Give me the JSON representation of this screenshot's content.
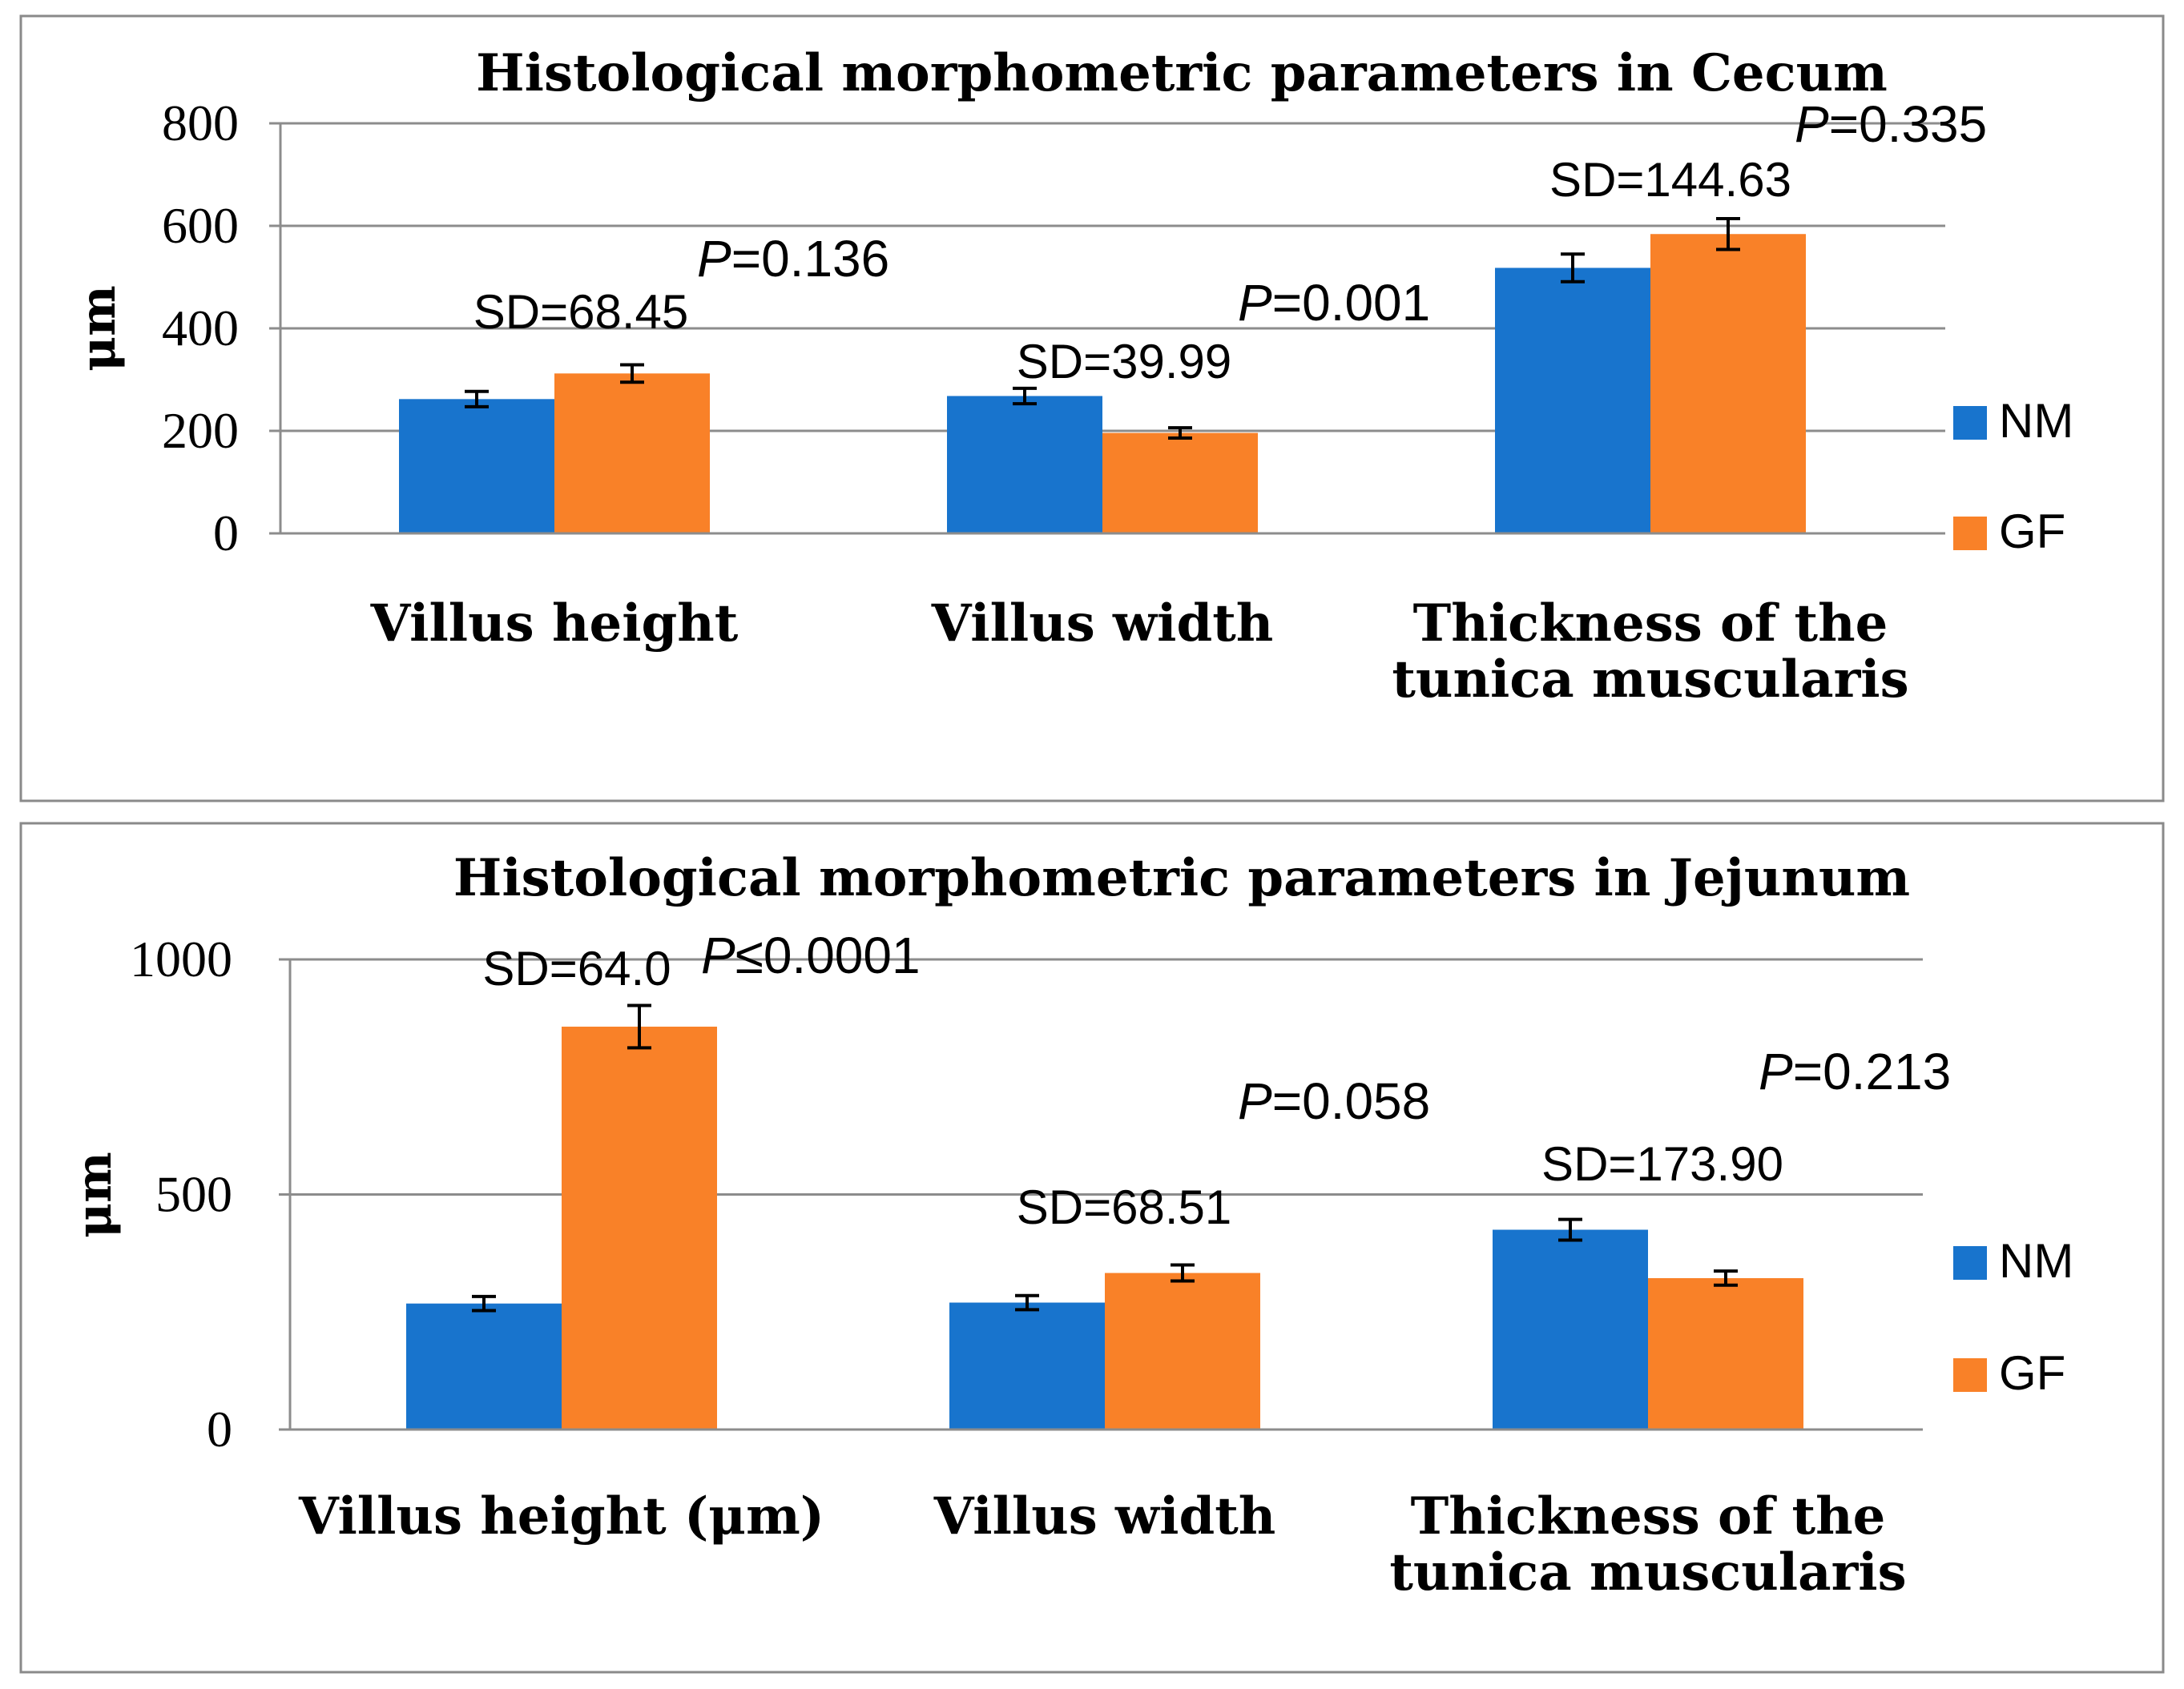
{
  "colors": {
    "nm": "#1874CD",
    "gf": "#F98128"
  },
  "chart_data": [
    {
      "type": "bar",
      "title": "Histological morphometric parameters in Cecum",
      "ylabel": "μm",
      "xlabel": "",
      "ylim": [
        0,
        800
      ],
      "yticks": [
        0,
        200,
        400,
        600,
        800
      ],
      "tick_labels": [
        "0",
        "200",
        "400",
        "600",
        "800"
      ],
      "categories": [
        [
          "Villus height"
        ],
        [
          "Villus width"
        ],
        [
          "Thickness of the",
          "tunica muscularis"
        ]
      ],
      "series": [
        {
          "name": "NM",
          "values": [
            262,
            268,
            518
          ],
          "errors": [
            15,
            15,
            27
          ]
        },
        {
          "name": "GF",
          "values": [
            312,
            196,
            584
          ],
          "errors": [
            17,
            10,
            30
          ]
        }
      ],
      "sd_labels": [
        "SD=68.45",
        "SD=39.99",
        "SD=144.63"
      ],
      "p_values": [
        "=0.136",
        "=0.001",
        "=0.335"
      ],
      "legend": [
        "NM",
        "GF"
      ]
    },
    {
      "type": "bar",
      "title": "Histological morphometric parameters in Jejunum",
      "ylabel": "μm",
      "xlabel": "",
      "ylim": [
        0,
        1000
      ],
      "yticks": [
        0,
        500,
        1000
      ],
      "tick_labels": [
        "0",
        "500",
        "1000"
      ],
      "categories": [
        [
          "Villus height (μm)"
        ],
        [
          "Villus width"
        ],
        [
          "Thickness of the",
          "tunica muscularis"
        ]
      ],
      "series": [
        {
          "name": "NM",
          "values": [
            268,
            270,
            425
          ],
          "errors": [
            15,
            15,
            22
          ]
        },
        {
          "name": "GF",
          "values": [
            857,
            333,
            322
          ],
          "errors": [
            45,
            17,
            15
          ]
        }
      ],
      "sd_labels": [
        "SD=64.0",
        "SD=68.51",
        "SD=173.90"
      ],
      "p_values": [
        "≤0.0001",
        "=0.058",
        "=0.213"
      ],
      "legend": [
        "NM",
        "GF"
      ]
    }
  ]
}
